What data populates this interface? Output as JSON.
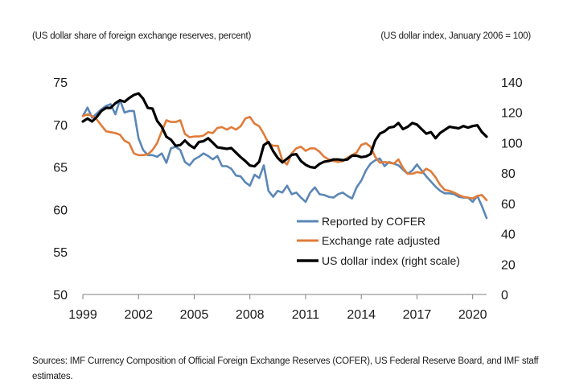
{
  "left_caption": "(US dollar share of foreign exchange reserves, percent)",
  "right_caption": "(US dollar index, January 2006 = 100)",
  "sources": "Sources: IMF Currency Composition of Official Foreign Exchange Reserves (COFER), US Federal Reserve Board, and IMF staff estimates.",
  "chart_data": {
    "type": "line",
    "title": "",
    "xlabel": "",
    "ylabel": "US dollar share of foreign exchange reserves, percent",
    "y2label": "US dollar index, January 2006 = 100",
    "xlim": [
      1999,
      2020.75
    ],
    "ylim": [
      50,
      75
    ],
    "y2lim": [
      0,
      140
    ],
    "x_ticks": [
      1999,
      2002,
      2005,
      2008,
      2011,
      2014,
      2017,
      2020
    ],
    "y_ticks": [
      50,
      55,
      60,
      65,
      70,
      75
    ],
    "y2_ticks": [
      0,
      20,
      40,
      60,
      80,
      100,
      120,
      140
    ],
    "legend_position": "bottom-right",
    "series": [
      {
        "name": "Reported by COFER",
        "axis": "left",
        "color": "#5b87b7",
        "x": [
          1999.0,
          1999.25,
          1999.5,
          1999.75,
          2000.0,
          2000.25,
          2000.5,
          2000.75,
          2001.0,
          2001.25,
          2001.5,
          2001.75,
          2002.0,
          2002.25,
          2002.5,
          2002.75,
          2003.0,
          2003.25,
          2003.5,
          2003.75,
          2004.0,
          2004.25,
          2004.5,
          2004.75,
          2005.0,
          2005.25,
          2005.5,
          2005.75,
          2006.0,
          2006.25,
          2006.5,
          2006.75,
          2007.0,
          2007.25,
          2007.5,
          2007.75,
          2008.0,
          2008.25,
          2008.5,
          2008.75,
          2009.0,
          2009.25,
          2009.5,
          2009.75,
          2010.0,
          2010.25,
          2010.5,
          2010.75,
          2011.0,
          2011.25,
          2011.5,
          2011.75,
          2012.0,
          2012.25,
          2012.5,
          2012.75,
          2013.0,
          2013.25,
          2013.5,
          2013.75,
          2014.0,
          2014.25,
          2014.5,
          2014.75,
          2015.0,
          2015.25,
          2015.5,
          2015.75,
          2016.0,
          2016.25,
          2016.5,
          2016.75,
          2017.0,
          2017.25,
          2017.5,
          2017.75,
          2018.0,
          2018.25,
          2018.5,
          2018.75,
          2019.0,
          2019.25,
          2019.5,
          2019.75,
          2020.0,
          2020.25,
          2020.5,
          2020.75
        ],
        "values": [
          71.0,
          72.0,
          70.8,
          71.3,
          71.8,
          72.2,
          72.4,
          71.2,
          72.9,
          71.4,
          71.6,
          71.6,
          68.4,
          67.0,
          66.4,
          66.4,
          66.2,
          66.6,
          65.5,
          67.2,
          67.4,
          67.0,
          65.6,
          65.2,
          65.9,
          66.2,
          66.6,
          66.3,
          65.9,
          66.3,
          65.1,
          65.1,
          64.8,
          64.0,
          63.9,
          63.2,
          62.8,
          64.1,
          63.7,
          65.2,
          62.2,
          61.5,
          62.2,
          62.0,
          62.8,
          61.8,
          62.0,
          61.4,
          60.9,
          62.0,
          62.6,
          61.8,
          61.7,
          61.5,
          61.4,
          61.8,
          62.0,
          61.6,
          61.3,
          62.6,
          63.4,
          64.6,
          65.4,
          65.8,
          66.0,
          65.1,
          65.6,
          65.4,
          65.2,
          64.7,
          64.2,
          64.6,
          65.3,
          64.6,
          63.9,
          63.3,
          62.7,
          62.2,
          61.9,
          61.9,
          61.8,
          61.5,
          61.4,
          61.4,
          60.9,
          61.6,
          60.4,
          59.0
        ]
      },
      {
        "name": "Exchange rate adjusted",
        "axis": "left",
        "color": "#e07b39",
        "x": [
          1999.0,
          1999.25,
          1999.5,
          1999.75,
          2000.0,
          2000.25,
          2000.5,
          2000.75,
          2001.0,
          2001.25,
          2001.5,
          2001.75,
          2002.0,
          2002.25,
          2002.5,
          2002.75,
          2003.0,
          2003.25,
          2003.5,
          2003.75,
          2004.0,
          2004.25,
          2004.5,
          2004.75,
          2005.0,
          2005.25,
          2005.5,
          2005.75,
          2006.0,
          2006.25,
          2006.5,
          2006.75,
          2007.0,
          2007.25,
          2007.5,
          2007.75,
          2008.0,
          2008.25,
          2008.5,
          2008.75,
          2009.0,
          2009.25,
          2009.5,
          2009.75,
          2010.0,
          2010.25,
          2010.5,
          2010.75,
          2011.0,
          2011.25,
          2011.5,
          2011.75,
          2012.0,
          2012.25,
          2012.5,
          2012.75,
          2013.0,
          2013.25,
          2013.5,
          2013.75,
          2014.0,
          2014.25,
          2014.5,
          2014.75,
          2015.0,
          2015.25,
          2015.5,
          2015.75,
          2016.0,
          2016.25,
          2016.5,
          2016.75,
          2017.0,
          2017.25,
          2017.5,
          2017.75,
          2018.0,
          2018.25,
          2018.5,
          2018.75,
          2019.0,
          2019.25,
          2019.5,
          2019.75,
          2020.0,
          2020.25,
          2020.5,
          2020.75
        ],
        "values": [
          71.0,
          71.2,
          71.0,
          70.6,
          69.9,
          69.2,
          69.1,
          69.0,
          68.8,
          68.1,
          67.8,
          66.6,
          66.4,
          66.4,
          66.5,
          67.0,
          67.8,
          69.2,
          70.5,
          70.3,
          70.3,
          70.5,
          68.9,
          68.5,
          68.6,
          68.6,
          68.7,
          69.1,
          69.0,
          69.6,
          69.7,
          69.4,
          69.7,
          69.4,
          69.8,
          70.7,
          70.9,
          70.1,
          69.8,
          68.9,
          67.8,
          67.5,
          67.5,
          65.8,
          65.3,
          66.6,
          67.2,
          67.4,
          66.9,
          67.2,
          67.2,
          66.8,
          66.2,
          65.9,
          65.7,
          65.6,
          65.7,
          66.1,
          66.4,
          66.7,
          67.6,
          67.8,
          67.4,
          66.2,
          65.5,
          65.6,
          65.5,
          65.4,
          65.9,
          64.9,
          64.2,
          64.2,
          64.4,
          64.3,
          64.8,
          64.5,
          63.8,
          62.9,
          62.3,
          62.2,
          62.0,
          61.7,
          61.5,
          61.4,
          61.3,
          61.6,
          61.7,
          61.1
        ]
      },
      {
        "name": "US dollar index (right scale)",
        "axis": "right",
        "color": "#000000",
        "x": [
          1999.0,
          1999.25,
          1999.5,
          1999.75,
          2000.0,
          2000.25,
          2000.5,
          2000.75,
          2001.0,
          2001.25,
          2001.5,
          2001.75,
          2002.0,
          2002.25,
          2002.5,
          2002.75,
          2003.0,
          2003.25,
          2003.5,
          2003.75,
          2004.0,
          2004.25,
          2004.5,
          2004.75,
          2005.0,
          2005.25,
          2005.5,
          2005.75,
          2006.0,
          2006.25,
          2006.5,
          2006.75,
          2007.0,
          2007.25,
          2007.5,
          2007.75,
          2008.0,
          2008.25,
          2008.5,
          2008.75,
          2009.0,
          2009.25,
          2009.5,
          2009.75,
          2010.0,
          2010.25,
          2010.5,
          2010.75,
          2011.0,
          2011.25,
          2011.5,
          2011.75,
          2012.0,
          2012.25,
          2012.5,
          2012.75,
          2013.0,
          2013.25,
          2013.5,
          2013.75,
          2014.0,
          2014.25,
          2014.5,
          2014.75,
          2015.0,
          2015.25,
          2015.5,
          2015.75,
          2016.0,
          2016.25,
          2016.5,
          2016.75,
          2017.0,
          2017.25,
          2017.5,
          2017.75,
          2018.0,
          2018.25,
          2018.5,
          2018.75,
          2019.0,
          2019.25,
          2019.5,
          2019.75,
          2020.0,
          2020.25,
          2020.5,
          2020.75
        ],
        "values": [
          114.0,
          116.0,
          114.0,
          117.0,
          121.0,
          123.0,
          123.0,
          126.0,
          128.0,
          127.0,
          129.5,
          131.5,
          132.5,
          129.0,
          123.0,
          122.5,
          114.5,
          110.5,
          104.0,
          102.0,
          98.0,
          98.5,
          101.5,
          98.5,
          96.5,
          100.5,
          101.0,
          103.0,
          100.0,
          97.0,
          96.5,
          96.0,
          96.5,
          93.5,
          90.5,
          88.0,
          85.0,
          84.5,
          87.5,
          98.5,
          100.5,
          94.5,
          90.0,
          87.0,
          89.5,
          92.0,
          92.5,
          88.0,
          85.5,
          84.0,
          83.5,
          86.0,
          87.5,
          88.0,
          89.0,
          89.0,
          88.5,
          89.0,
          91.5,
          91.5,
          90.5,
          91.0,
          92.5,
          101.5,
          106.0,
          107.5,
          110.0,
          110.5,
          113.0,
          109.0,
          110.5,
          113.0,
          112.0,
          109.0,
          106.0,
          107.0,
          103.0,
          106.5,
          108.5,
          110.5,
          110.0,
          109.5,
          111.0,
          110.0,
          111.0,
          111.5,
          107.0,
          104.0
        ]
      }
    ]
  }
}
